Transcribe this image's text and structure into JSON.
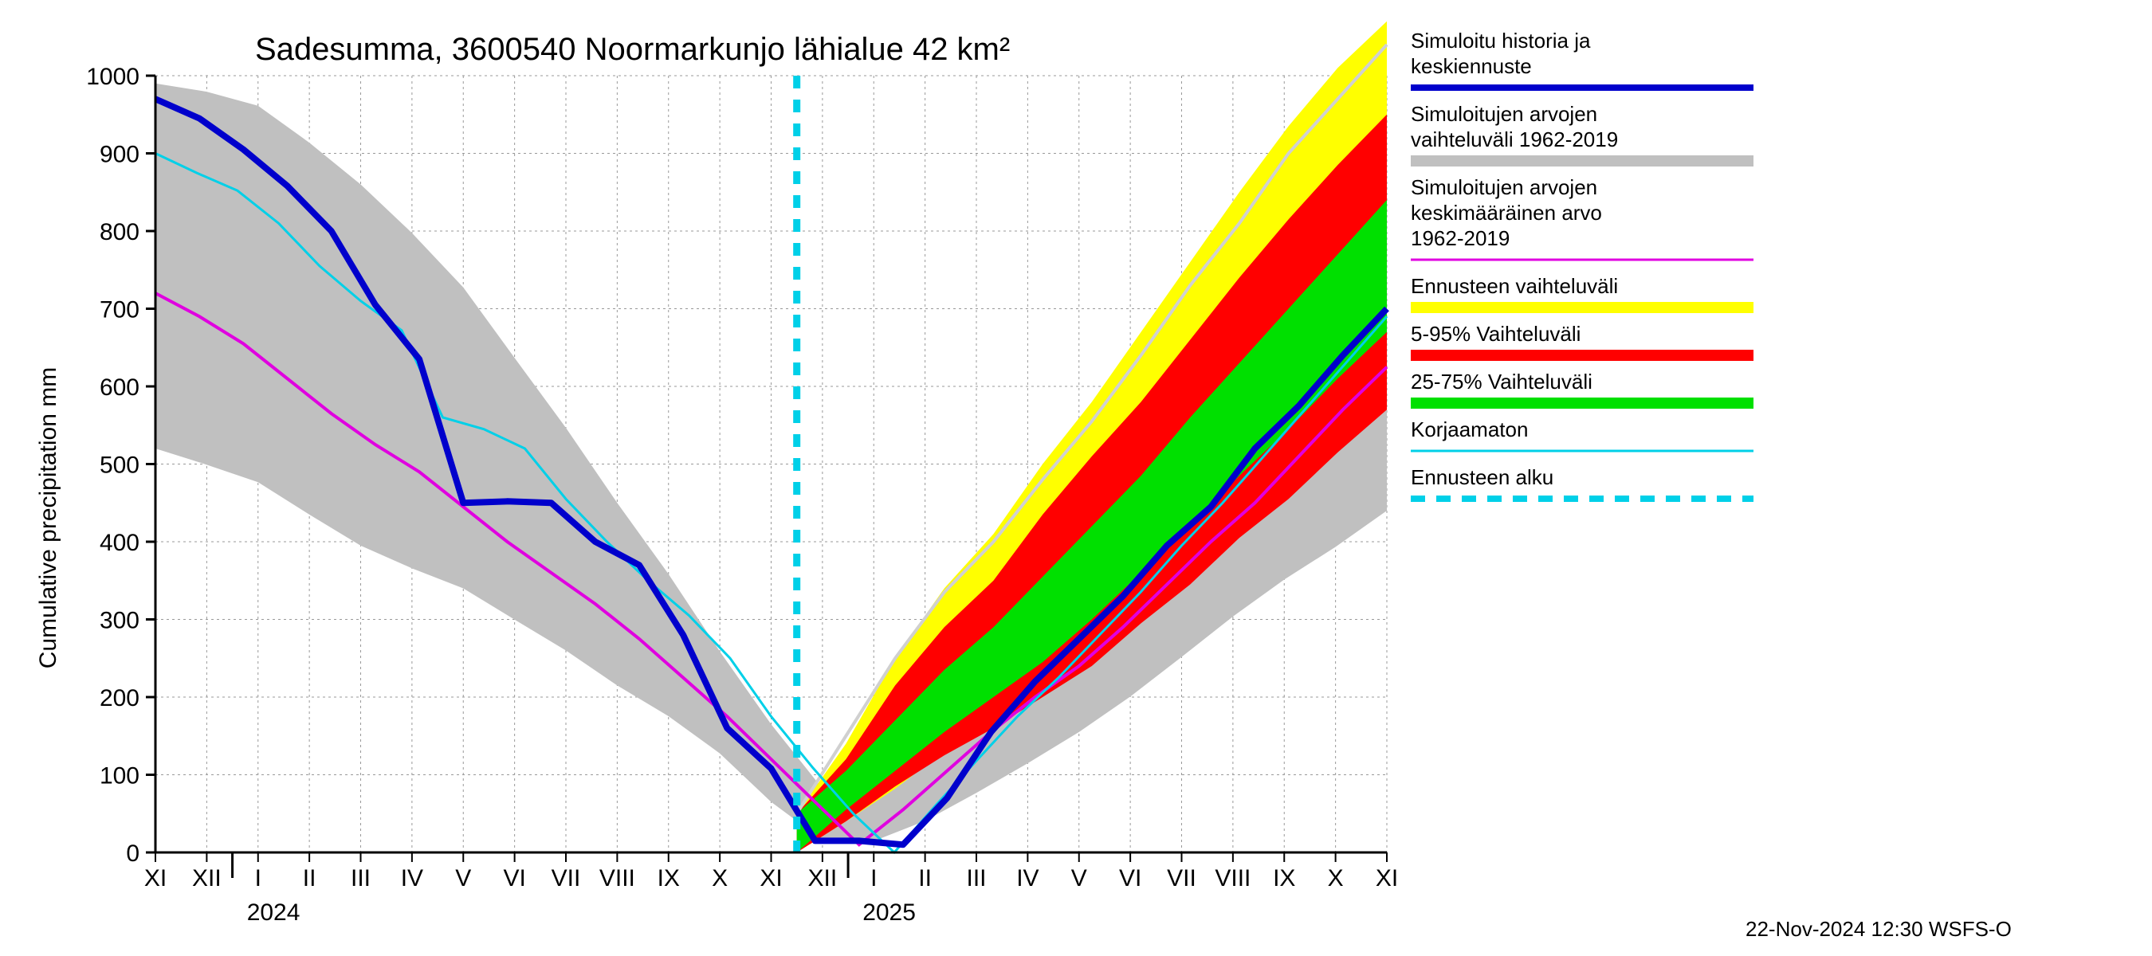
{
  "title": "Sadesumma, 3600540 Noormarkunjo lähialue 42 km²",
  "ylabel": "Cumulative precipitation   mm",
  "footer": "22-Nov-2024 12:30 WSFS-O",
  "ylim": [
    0,
    1000
  ],
  "ytick_step": 100,
  "background_color": "#ffffff",
  "grid_color": "#999999",
  "axis_color": "#000000",
  "title_fontsize": 40,
  "label_fontsize": 30,
  "tick_fontsize": 30,
  "legend_fontsize": 26,
  "months": [
    "XI",
    "XII",
    "I",
    "II",
    "III",
    "IV",
    "V",
    "VI",
    "VII",
    "VIII",
    "IX",
    "X",
    "XI",
    "XII",
    "I",
    "II",
    "III",
    "IV",
    "V",
    "VI",
    "VII",
    "VIII",
    "IX",
    "X",
    "XI"
  ],
  "year_labels": [
    {
      "text": "2024",
      "month_index": 2.3
    },
    {
      "text": "2025",
      "month_index": 14.3
    }
  ],
  "forecast_start_index": 12.5,
  "series": {
    "hist_upper": [
      990,
      980,
      965,
      920,
      870,
      810,
      750,
      660,
      580,
      480,
      400,
      300,
      210,
      120,
      50,
      150,
      250,
      335,
      400,
      480,
      555,
      640,
      730,
      810,
      900,
      970
    ],
    "hist_lower": [
      520,
      500,
      480,
      440,
      400,
      370,
      350,
      310,
      275,
      230,
      190,
      155,
      95,
      35,
      0,
      25,
      50,
      90,
      125,
      165,
      210,
      260,
      310,
      355,
      395,
      440
    ],
    "fc_outer_upper": [
      50,
      140,
      250,
      340,
      410,
      500,
      580,
      670,
      760,
      850,
      935,
      1010,
      1070
    ],
    "fc_outer_lower": [
      0,
      40,
      82,
      130,
      165,
      200,
      255,
      312,
      365,
      425,
      480,
      545,
      605
    ],
    "fc_595_upper": [
      50,
      120,
      215,
      290,
      350,
      435,
      510,
      580,
      660,
      740,
      815,
      885,
      950
    ],
    "fc_595_lower": [
      0,
      40,
      85,
      125,
      160,
      200,
      240,
      295,
      345,
      405,
      455,
      515,
      570
    ],
    "fc_2575_upper": [
      50,
      105,
      170,
      235,
      290,
      355,
      420,
      485,
      560,
      630,
      700,
      770,
      840
    ],
    "fc_2575_lower": [
      0,
      55,
      105,
      155,
      200,
      245,
      300,
      360,
      420,
      485,
      545,
      610,
      670
    ],
    "sim_hist": [
      970,
      945,
      905,
      858,
      800,
      705,
      635,
      450,
      452,
      450,
      400,
      370,
      280,
      160,
      108,
      15,
      15,
      10,
      70,
      155,
      220,
      275,
      330,
      395,
      445,
      520,
      575,
      640,
      700
    ],
    "avg_line": [
      720,
      690,
      655,
      610,
      565,
      525,
      490,
      445,
      400,
      360,
      320,
      275,
      225,
      175,
      120,
      65,
      10,
      55,
      105,
      155,
      200,
      240,
      290,
      345,
      400,
      450,
      510,
      570,
      625
    ],
    "uncorr": [
      900,
      875,
      852,
      810,
      755,
      710,
      672,
      560,
      545,
      520,
      455,
      400,
      350,
      305,
      250,
      175,
      110,
      50,
      0,
      60,
      118,
      175,
      225,
      280,
      335,
      395,
      450,
      510,
      570,
      630,
      690
    ],
    "hist_upper_fc": [
      50,
      150,
      250,
      335,
      400,
      480,
      555,
      640,
      730,
      810,
      900,
      970,
      1040
    ]
  },
  "colors": {
    "hist_band": "#c0c0c0",
    "fc_outer": "#ffff00",
    "fc_595": "#ff0000",
    "fc_2575": "#00e000",
    "sim_hist": "#0000cc",
    "avg_line": "#e000e0",
    "uncorr": "#00d0e8",
    "forecast_line": "#00d0e8"
  },
  "legend": [
    {
      "label1": "Simuloitu historia ja",
      "label2": "keskiennuste",
      "type": "line",
      "color": "#0000cc",
      "width": 8
    },
    {
      "label1": "Simuloitujen arvojen",
      "label2": "vaihteluväli 1962-2019",
      "type": "line",
      "color": "#c0c0c0",
      "width": 14
    },
    {
      "label1": "Simuloitujen arvojen",
      "label2": "keskimääräinen arvo",
      "label3": " 1962-2019",
      "type": "line",
      "color": "#e000e0",
      "width": 3
    },
    {
      "label1": "Ennusteen vaihteluväli",
      "type": "line",
      "color": "#ffff00",
      "width": 14
    },
    {
      "label1": "5-95% Vaihteluväli",
      "type": "line",
      "color": "#ff0000",
      "width": 14
    },
    {
      "label1": "25-75% Vaihteluväli",
      "type": "line",
      "color": "#00e000",
      "width": 14
    },
    {
      "label1": "Korjaamaton",
      "type": "line",
      "color": "#00d0e8",
      "width": 3
    },
    {
      "label1": "Ennusteen alku",
      "type": "dash",
      "color": "#00d0e8",
      "width": 8
    }
  ]
}
